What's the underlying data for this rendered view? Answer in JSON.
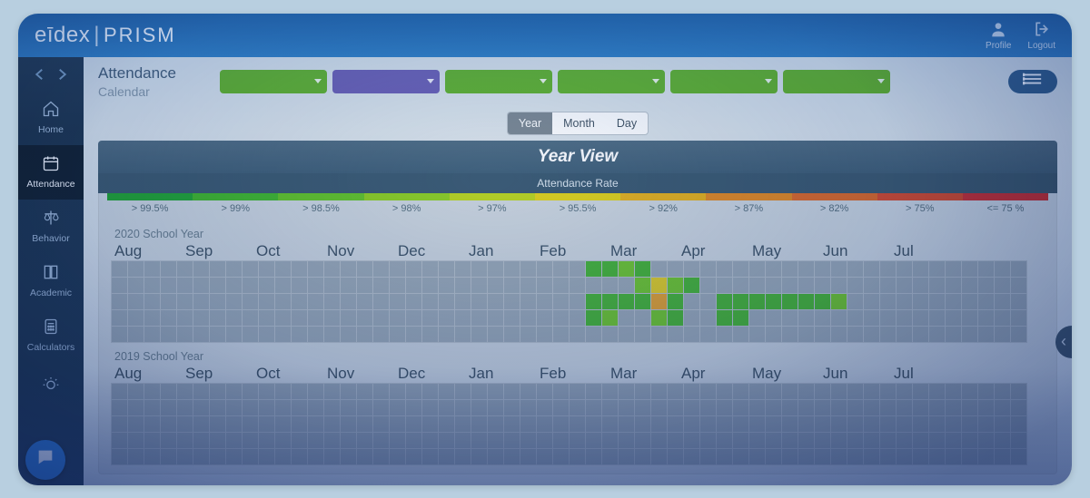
{
  "brand": {
    "left": "eīdex",
    "right": "PRISM"
  },
  "topbar": {
    "profile_label": "Profile",
    "logout_label": "Logout"
  },
  "sidebar": {
    "items": [
      {
        "key": "home",
        "label": "Home",
        "icon": "home-icon",
        "active": false
      },
      {
        "key": "attendance",
        "label": "Attendance",
        "icon": "calendar-icon",
        "active": true
      },
      {
        "key": "behavior",
        "label": "Behavior",
        "icon": "scales-icon",
        "active": false
      },
      {
        "key": "academic",
        "label": "Academic",
        "icon": "book-icon",
        "active": false
      },
      {
        "key": "calculators",
        "label": "Calculators",
        "icon": "calculator-icon",
        "active": false
      },
      {
        "key": "insights",
        "label": "",
        "icon": "bulb-icon",
        "active": false
      }
    ]
  },
  "page": {
    "title": "Attendance",
    "subtitle": "Calendar"
  },
  "filters": [
    {
      "color": "green"
    },
    {
      "color": "purple"
    },
    {
      "color": "green"
    },
    {
      "color": "green"
    },
    {
      "color": "green"
    },
    {
      "color": "green"
    }
  ],
  "view_toggle": {
    "options": [
      "Year",
      "Month",
      "Day"
    ],
    "active": "Year"
  },
  "panel": {
    "title": "Year View",
    "subtitle": "Attendance Rate",
    "legend": {
      "segments": [
        {
          "label": "> 99.5%",
          "color": "#1fa637"
        },
        {
          "label": "> 99%",
          "color": "#3fb82f"
        },
        {
          "label": "> 98.5%",
          "color": "#62c52a"
        },
        {
          "label": "> 98%",
          "color": "#8ed022"
        },
        {
          "label": "> 97%",
          "color": "#bcd71e"
        },
        {
          "label": "> 95.5%",
          "color": "#e3d41a"
        },
        {
          "label": "> 92%",
          "color": "#e9b21e"
        },
        {
          "label": "> 87%",
          "color": "#e78a25"
        },
        {
          "label": "> 82%",
          "color": "#e26a2d"
        },
        {
          "label": "> 75%",
          "color": "#d94a33"
        },
        {
          "label": "<= 75 %",
          "color": "#cf2f3a"
        }
      ]
    }
  },
  "calendar": {
    "months": [
      "Aug",
      "Sep",
      "Oct",
      "Nov",
      "Dec",
      "Jan",
      "Feb",
      "Mar",
      "Apr",
      "May",
      "Jun",
      "Jul"
    ],
    "month_col_span": 4.67,
    "grid": {
      "cols": 56,
      "rows": 5,
      "cell_bg": "#9cabb7",
      "gap_bg": "#b8c2ca"
    },
    "cell_colors": {
      "blank": "#9cabb7",
      "g1": "#46b639",
      "g2": "#6fc832",
      "y": "#e3cf2a",
      "o": "#e6a334",
      "r": "#d9553b"
    },
    "years": [
      {
        "label": "2020 School Year",
        "cells": {
          "29,0": "g1",
          "30,0": "g1",
          "31,0": "g2",
          "32,0": "g1",
          "32,1": "g2",
          "33,1": "y",
          "34,1": "g2",
          "35,1": "g1",
          "29,2": "g1",
          "30,2": "g1",
          "31,2": "g1",
          "32,2": "g1",
          "33,2": "o",
          "34,2": "g1",
          "37,2": "g1",
          "38,2": "g1",
          "39,2": "g1",
          "40,2": "g1",
          "41,2": "g1",
          "42,2": "g1",
          "43,2": "g1",
          "44,2": "g2",
          "29,3": "g1",
          "30,3": "g2",
          "33,3": "g2",
          "34,3": "g1",
          "37,3": "g1",
          "38,3": "g1"
        }
      },
      {
        "label": "2019 School Year",
        "cells": {}
      }
    ]
  },
  "colors": {
    "topbar_grad_top": "#1961a8",
    "topbar_grad_bot": "#2b7fc5",
    "sidebar_bg": "#1b3654",
    "main_bg": "#dbe4ea",
    "panel_bg": "#cfd8df",
    "panel_header_top": "#4e6d85",
    "panel_header_bot": "#3f6079"
  }
}
